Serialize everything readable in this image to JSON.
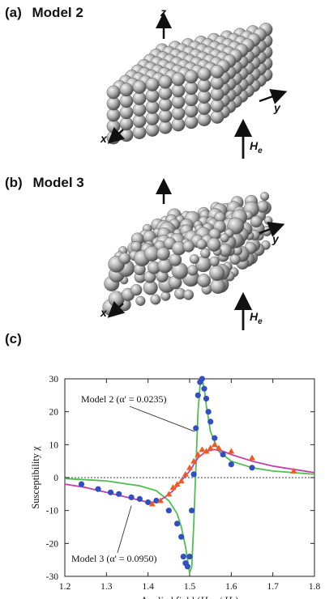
{
  "panels": {
    "a": {
      "label": "(a)",
      "title": "Model 2"
    },
    "b": {
      "label": "(b)",
      "title": "Model 3"
    },
    "c": {
      "label": "(c)"
    }
  },
  "axes3d": {
    "z": "z",
    "y": "y",
    "x": "x",
    "field": "H",
    "field_sub": "e"
  },
  "colors": {
    "sphere_light": "#f0f0f0",
    "sphere_dark": "#5a5a5a",
    "green_line": "#4fc04f",
    "magenta_line": "#c040b0",
    "blue_dots": "#3050c0",
    "red_tri": "#f05a20",
    "zero_line": "#000000"
  },
  "chart_data": {
    "type": "scatter",
    "xlabel": "Applied field (H_ext / H_0)",
    "xlabel_parts": {
      "pre": "Applied field (",
      "H": "H",
      "ext": "ext",
      "slash": " / ",
      "H0": "H",
      "zero": "0",
      "post": ")"
    },
    "ylabel": "Susceptibility χ",
    "xlim": [
      1.2,
      1.8
    ],
    "ylim": [
      -30,
      30
    ],
    "xticks": [
      "1.2",
      "1.3",
      "1.4",
      "1.5",
      "1.6",
      "1.7",
      "1.8"
    ],
    "yticks": [
      "30",
      "20",
      "10",
      "0",
      "-10",
      "-20",
      "-30"
    ],
    "xtick_values": [
      1.2,
      1.3,
      1.4,
      1.5,
      1.6,
      1.7,
      1.8
    ],
    "ytick_values": [
      30,
      20,
      10,
      0,
      -10,
      -20,
      -30
    ],
    "zero_line": true,
    "annotations": [
      {
        "text": "Model 2 (α' = 0.0235)"
      },
      {
        "text": "Model 3 (α' = 0.0950)"
      }
    ],
    "series": [
      {
        "color": "#4fc04f",
        "kind": "line",
        "x": [
          1.2,
          1.3,
          1.38,
          1.42,
          1.45,
          1.47,
          1.48,
          1.49,
          1.5,
          1.505,
          1.51,
          1.515,
          1.52,
          1.525,
          1.53,
          1.535,
          1.54,
          1.55,
          1.57,
          1.6,
          1.65,
          1.7,
          1.8
        ],
        "y": [
          -0.3,
          -1,
          -2.5,
          -4,
          -7,
          -11,
          -15,
          -21,
          -29,
          -27,
          -14,
          3,
          20,
          28,
          30,
          27,
          22,
          14,
          8,
          5,
          3,
          2,
          1
        ]
      },
      {
        "color": "#c040b0",
        "kind": "line",
        "x": [
          1.2,
          1.25,
          1.3,
          1.35,
          1.4,
          1.42,
          1.44,
          1.46,
          1.48,
          1.5,
          1.52,
          1.54,
          1.56,
          1.58,
          1.6,
          1.65,
          1.7,
          1.8
        ],
        "y": [
          -2,
          -3,
          -4.5,
          -6,
          -7.5,
          -7.5,
          -6,
          -4,
          -1,
          2,
          6,
          8,
          8.5,
          8,
          7,
          5,
          3.5,
          1.5
        ]
      },
      {
        "color": "#3050c0",
        "kind": "points",
        "x": [
          1.24,
          1.28,
          1.31,
          1.33,
          1.36,
          1.38,
          1.4,
          1.42,
          1.45,
          1.47,
          1.48,
          1.485,
          1.49,
          1.495,
          1.5,
          1.505,
          1.51,
          1.515,
          1.52,
          1.525,
          1.53,
          1.535,
          1.54,
          1.545,
          1.55,
          1.56,
          1.58,
          1.6,
          1.65
        ],
        "y": [
          -2,
          -3.5,
          -4.5,
          -5,
          -6,
          -6.5,
          -7.5,
          -7,
          -10,
          -14,
          -18,
          -24,
          -26,
          -27,
          -24,
          -10,
          1,
          15,
          25,
          29,
          30,
          27,
          24,
          20,
          17,
          12,
          7,
          4,
          3
        ]
      },
      {
        "color": "#f05a20",
        "kind": "triangles",
        "x": [
          1.41,
          1.43,
          1.45,
          1.46,
          1.47,
          1.48,
          1.49,
          1.5,
          1.51,
          1.52,
          1.53,
          1.54,
          1.55,
          1.56,
          1.57,
          1.6,
          1.65,
          1.75
        ],
        "y": [
          -8,
          -7,
          -5,
          -3,
          -2,
          -1,
          1,
          3,
          5,
          7,
          8.5,
          8,
          9,
          10,
          9,
          8,
          6,
          2
        ]
      }
    ]
  }
}
